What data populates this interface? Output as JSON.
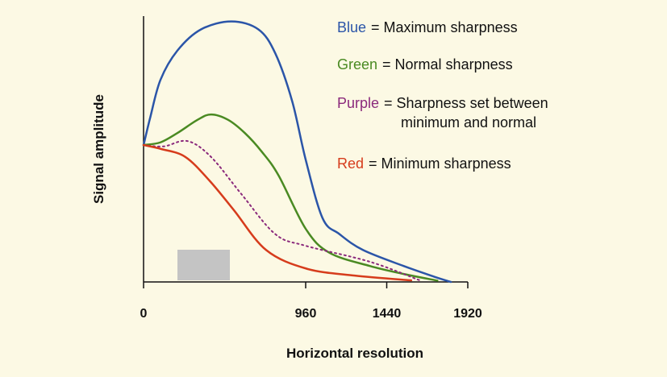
{
  "chart_data": {
    "type": "line",
    "x_label": "Horizontal resolution",
    "y_label": "Signal amplitude",
    "xlim": [
      0,
      1920
    ],
    "xticks": [
      0,
      960,
      1440,
      1920
    ],
    "ylim": [
      0,
      100
    ],
    "series": [
      {
        "name": "Blue",
        "description": [
          "= Maximum sharpness"
        ],
        "color": "#2b55a8",
        "dashed": false,
        "x": [
          0,
          40,
          100,
          200,
          340,
          520,
          680,
          780,
          880,
          960,
          1060,
          1160,
          1300,
          1540,
          1720,
          1820
        ],
        "values": [
          51.5,
          62,
          76,
          87,
          95,
          98,
          95,
          86,
          68,
          46,
          24,
          18,
          12,
          6,
          2,
          0
        ]
      },
      {
        "name": "Green",
        "description": [
          "= Normal sharpness"
        ],
        "color": "#4a8a22",
        "dashed": false,
        "x": [
          0,
          100,
          200,
          320,
          400,
          500,
          600,
          700,
          800,
          960,
          1100,
          1340,
          1540,
          1740
        ],
        "values": [
          51.5,
          52.5,
          56,
          61,
          63,
          61,
          56,
          49,
          40,
          20,
          11,
          6,
          3,
          0.5
        ]
      },
      {
        "name": "Purple",
        "description": [
          "= Sharpness set between",
          "minimum and normal"
        ],
        "color": "#8b2a7c",
        "dashed": true,
        "x": [
          0,
          120,
          260,
          400,
          580,
          780,
          960,
          1340,
          1640
        ],
        "values": [
          51.5,
          51,
          53,
          47,
          33,
          18,
          13.6,
          7.6,
          0.5
        ]
      },
      {
        "name": "Red",
        "description": [
          "= Minimum sharpness"
        ],
        "color": "#d63c1c",
        "dashed": false,
        "x": [
          0,
          105,
          248,
          392,
          535,
          726,
          965,
          1251,
          1585
        ],
        "values": [
          51.5,
          50,
          47,
          38,
          27,
          12,
          5,
          2.4,
          0.6
        ]
      }
    ]
  }
}
